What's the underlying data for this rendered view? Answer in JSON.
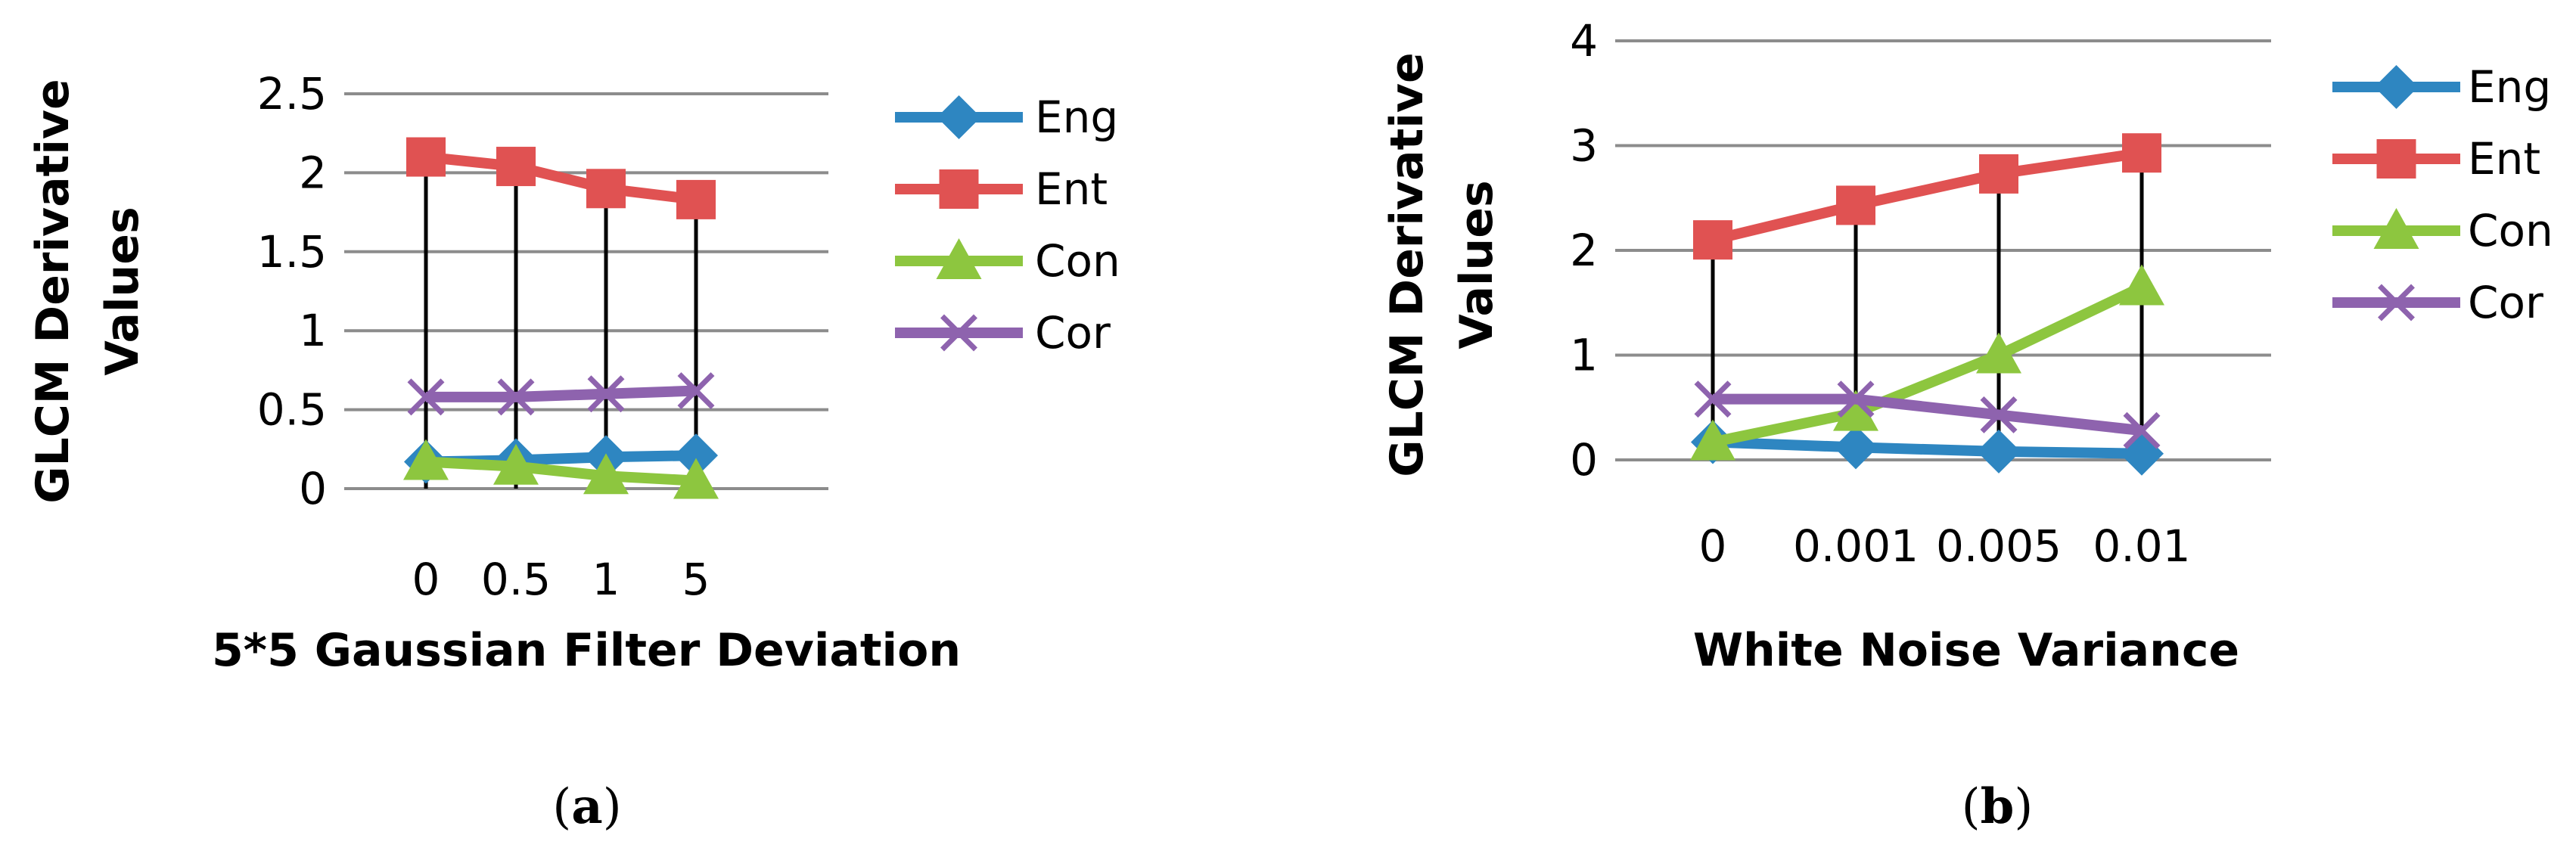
{
  "chart_data": [
    {
      "type": "line",
      "x": [
        "0",
        "0.5",
        "1",
        "5"
      ],
      "xlabel": "5*5 Gaussian Filter Deviation",
      "ylabel": "GLCM  Derivative Values",
      "ylim": [
        0,
        2.5
      ],
      "yticks": [
        "0",
        "0.5",
        "1",
        "1.5",
        "2",
        "2.5"
      ],
      "grid": true,
      "legend": "right",
      "caption": {
        "pre": "(",
        "letter": "a",
        "post": ")"
      },
      "series": [
        {
          "name": "Eng",
          "color": "#2E86C1",
          "marker": "diamond",
          "values": [
            0.17,
            0.18,
            0.2,
            0.21
          ]
        },
        {
          "name": "Ent",
          "color": "#E05252",
          "marker": "square",
          "values": [
            2.1,
            2.04,
            1.9,
            1.83
          ]
        },
        {
          "name": "Con",
          "color": "#8DC63F",
          "marker": "triangle",
          "values": [
            0.17,
            0.14,
            0.08,
            0.05
          ]
        },
        {
          "name": "Cor",
          "color": "#8E63AE",
          "marker": "x",
          "values": [
            0.58,
            0.58,
            0.6,
            0.62
          ]
        }
      ]
    },
    {
      "type": "line",
      "x": [
        "0",
        "0.001",
        "0.005",
        "0.01"
      ],
      "xlabel": "White Noise Variance",
      "ylabel": "GLCM  Derivative Values",
      "ylim": [
        0,
        4
      ],
      "yticks": [
        "0",
        "1",
        "2",
        "3",
        "4"
      ],
      "grid": true,
      "legend": "right",
      "caption": {
        "pre": "(",
        "letter": "b",
        "post": ")"
      },
      "series": [
        {
          "name": "Eng",
          "color": "#2E86C1",
          "marker": "diamond",
          "values": [
            0.17,
            0.12,
            0.08,
            0.06
          ]
        },
        {
          "name": "Ent",
          "color": "#E05252",
          "marker": "square",
          "values": [
            2.1,
            2.43,
            2.73,
            2.93
          ]
        },
        {
          "name": "Con",
          "color": "#8DC63F",
          "marker": "triangle",
          "values": [
            0.17,
            0.45,
            1.0,
            1.65
          ]
        },
        {
          "name": "Cor",
          "color": "#8E63AE",
          "marker": "x",
          "values": [
            0.58,
            0.58,
            0.43,
            0.28
          ]
        }
      ]
    }
  ]
}
